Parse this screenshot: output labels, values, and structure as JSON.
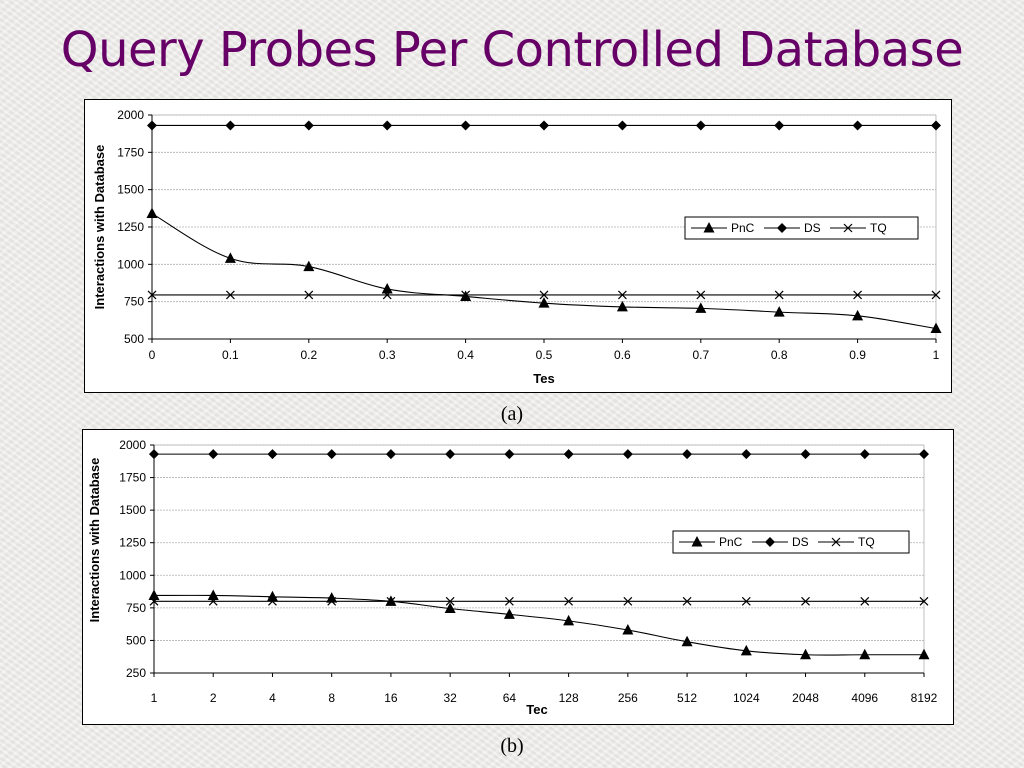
{
  "slide": {
    "title": "Query Probes Per Controlled Database"
  },
  "chart_data": [
    {
      "id": "a",
      "caption": "(a)",
      "type": "line",
      "xlabel": "Tes",
      "ylabel": "Interactions with Database",
      "x_scale": "linear",
      "x": [
        0,
        0.1,
        0.2,
        0.3,
        0.4,
        0.5,
        0.6,
        0.7,
        0.8,
        0.9,
        1
      ],
      "x_tick_labels": [
        "0",
        "0.1",
        "0.2",
        "0.3",
        "0.4",
        "0.5",
        "0.6",
        "0.7",
        "0.8",
        "0.9",
        "1"
      ],
      "ylim": [
        500,
        2000
      ],
      "y_ticks": [
        500,
        750,
        1000,
        1250,
        1500,
        1750,
        2000
      ],
      "grid": "horizontal",
      "legend_position": "right",
      "series": [
        {
          "name": "PnC",
          "marker": "triangle",
          "values": [
            1340,
            1040,
            985,
            835,
            785,
            740,
            715,
            705,
            680,
            655,
            570
          ]
        },
        {
          "name": "DS",
          "marker": "diamond",
          "values": [
            1930,
            1930,
            1930,
            1930,
            1930,
            1930,
            1930,
            1930,
            1930,
            1930,
            1930
          ]
        },
        {
          "name": "TQ",
          "marker": "x",
          "values": [
            795,
            795,
            795,
            795,
            795,
            795,
            795,
            795,
            795,
            795,
            795
          ]
        }
      ]
    },
    {
      "id": "b",
      "caption": "(b)",
      "type": "line",
      "xlabel": "Tec",
      "ylabel": "Interactions with Database",
      "x_scale": "log2",
      "x": [
        1,
        2,
        4,
        8,
        16,
        32,
        64,
        128,
        256,
        512,
        1024,
        2048,
        4096,
        8192
      ],
      "x_tick_labels": [
        "1",
        "2",
        "4",
        "8",
        "16",
        "32",
        "64",
        "128",
        "256",
        "512",
        "1024",
        "2048",
        "4096",
        "8192"
      ],
      "ylim": [
        250,
        2000
      ],
      "y_ticks": [
        250,
        500,
        750,
        1000,
        1250,
        1500,
        1750,
        2000
      ],
      "grid": "horizontal",
      "legend_position": "right",
      "series": [
        {
          "name": "PnC",
          "marker": "triangle",
          "values": [
            845,
            845,
            835,
            825,
            800,
            745,
            700,
            650,
            580,
            490,
            420,
            390,
            390,
            390
          ]
        },
        {
          "name": "DS",
          "marker": "diamond",
          "values": [
            1930,
            1930,
            1930,
            1930,
            1930,
            1930,
            1930,
            1930,
            1930,
            1930,
            1930,
            1930,
            1930,
            1930
          ]
        },
        {
          "name": "TQ",
          "marker": "x",
          "values": [
            800,
            800,
            800,
            800,
            800,
            800,
            800,
            800,
            800,
            800,
            800,
            800,
            800,
            800
          ]
        }
      ]
    }
  ]
}
